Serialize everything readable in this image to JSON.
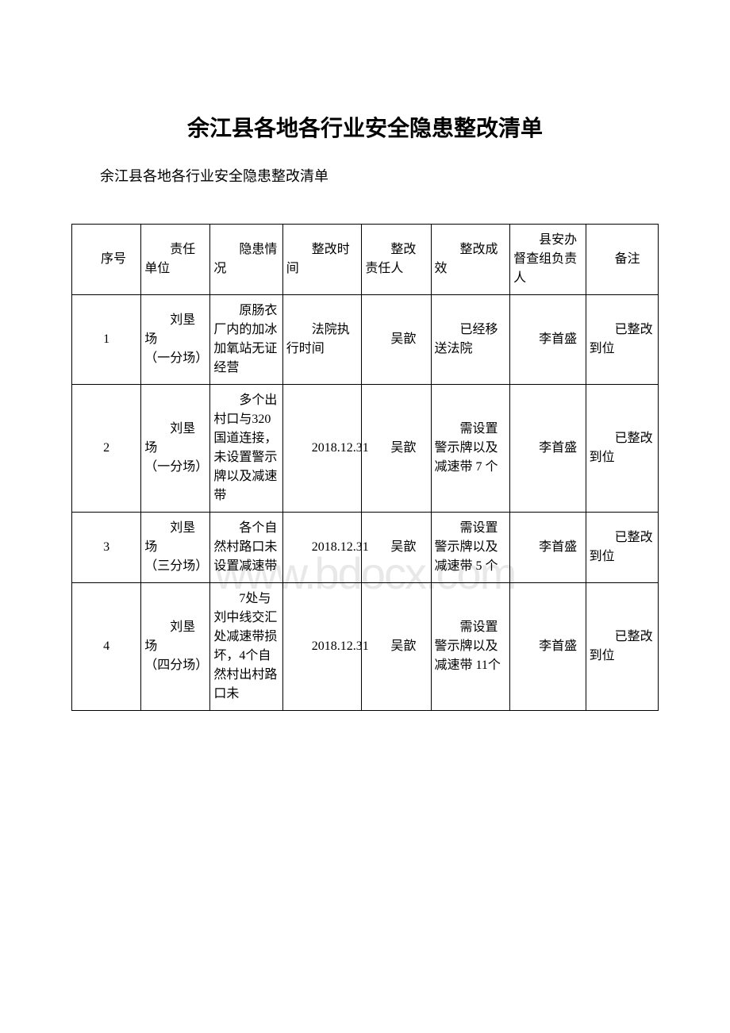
{
  "document": {
    "title": "余江县各地各行业安全隐患整改清单",
    "subtitle": "余江县各地各行业安全隐患整改清单",
    "watermark": "www.bdocx.com"
  },
  "table": {
    "headers": {
      "seq": "序号",
      "unit": "责任单位",
      "hazard": "隐患情况",
      "time": "整改时间",
      "person": "整改责任人",
      "effect": "整改成效",
      "supervisor": "县安办督查组负责人",
      "remark": "备注"
    },
    "rows": [
      {
        "seq": "1",
        "unit": "刘垦场\n（一分场）",
        "hazard": "原肠衣厂内的加冰加氧站无证经营",
        "time": "法院执行时间",
        "person": "吴歆",
        "effect": "已经移送法院",
        "supervisor": "李首盛",
        "remark": "已整改到位"
      },
      {
        "seq": "2",
        "unit": "刘垦场\n（一分场）",
        "hazard": "多个出村口与320 国道连接，未设置警示牌以及减速带",
        "time": "2018.12.31",
        "person": "吴歆",
        "effect": "需设置警示牌以及减速带 7 个",
        "supervisor": "李首盛",
        "remark": "已整改到位"
      },
      {
        "seq": "3",
        "unit": "刘垦场\n（三分场）",
        "hazard": "各个自然村路口未设置减速带",
        "time": "2018.12.31",
        "person": "吴歆",
        "effect": "需设置警示牌以及减速带 5 个",
        "supervisor": "李首盛",
        "remark": "已整改到位"
      },
      {
        "seq": "4",
        "unit": "刘垦场\n（四分场）",
        "hazard": "7处与刘中线交汇处减速带损坏，4个自然村出村路口未",
        "time": "2018.12.31",
        "person": "吴歆",
        "effect": "需设置警示牌以及减速带 11个",
        "supervisor": "李首盛",
        "remark": "已整改到位"
      }
    ]
  },
  "styling": {
    "title_fontsize": 28,
    "subtitle_fontsize": 18,
    "cell_fontsize": 16,
    "border_color": "#000000",
    "background_color": "#ffffff",
    "text_color": "#000000",
    "watermark_color": "#e8e8e8",
    "column_widths_pct": [
      10.5,
      10.5,
      11,
      12,
      10.5,
      12,
      11.5,
      11
    ]
  }
}
